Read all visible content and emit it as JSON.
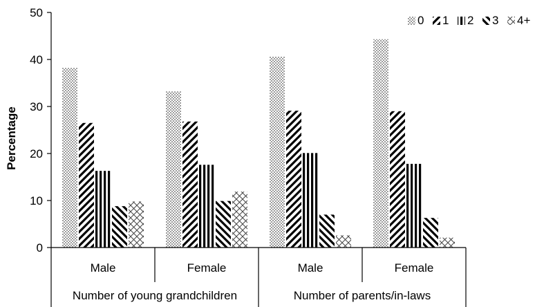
{
  "chart_data": {
    "type": "bar",
    "title": "",
    "xlabel": "",
    "ylabel": "Percentage",
    "ylim": [
      0,
      50
    ],
    "yticks": [
      0,
      10,
      20,
      30,
      40,
      50
    ],
    "groups": [
      {
        "label": "Number of young grandchildren",
        "categories": [
          "Male",
          "Female"
        ]
      },
      {
        "label": "Number of parents/in-laws",
        "categories": [
          "Male",
          "Female"
        ]
      }
    ],
    "series": [
      {
        "name": "0",
        "values": [
          38.2,
          33.2,
          40.6,
          44.3
        ],
        "pattern": "dots"
      },
      {
        "name": "1",
        "values": [
          26.5,
          26.8,
          29.1,
          29.0
        ],
        "pattern": "diagonal"
      },
      {
        "name": "2",
        "values": [
          16.3,
          17.6,
          20.1,
          17.8
        ],
        "pattern": "vertical"
      },
      {
        "name": "3",
        "values": [
          8.8,
          9.9,
          7.0,
          6.3
        ],
        "pattern": "backdiagonal"
      },
      {
        "name": "4+",
        "values": [
          9.8,
          11.9,
          2.6,
          2.1
        ],
        "pattern": "cross"
      }
    ],
    "legend_position": "top-right",
    "grid": false
  }
}
